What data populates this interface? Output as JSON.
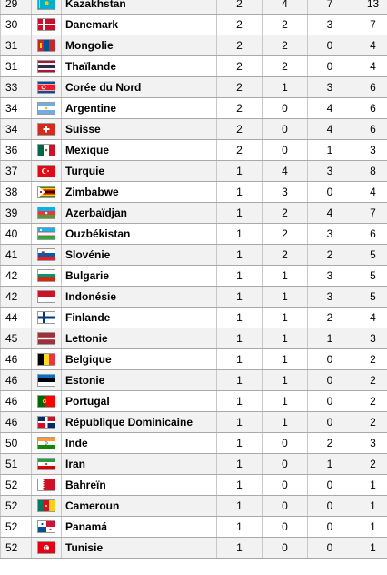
{
  "rows": [
    {
      "rank": "29",
      "country": "Kazakhstan",
      "gold": "2",
      "silver": "4",
      "bronze": "7",
      "total": "13",
      "flag": "kazakhstan-flag"
    },
    {
      "rank": "30",
      "country": "Danemark",
      "gold": "2",
      "silver": "2",
      "bronze": "3",
      "total": "7",
      "flag": "denmark-flag"
    },
    {
      "rank": "31",
      "country": "Mongolie",
      "gold": "2",
      "silver": "2",
      "bronze": "0",
      "total": "4",
      "flag": "mongolia-flag"
    },
    {
      "rank": "31",
      "country": "Thaïlande",
      "gold": "2",
      "silver": "2",
      "bronze": "0",
      "total": "4",
      "flag": "thailand-flag"
    },
    {
      "rank": "33",
      "country": "Corée du Nord",
      "gold": "2",
      "silver": "1",
      "bronze": "3",
      "total": "6",
      "flag": "north-korea-flag"
    },
    {
      "rank": "34",
      "country": "Argentine",
      "gold": "2",
      "silver": "0",
      "bronze": "4",
      "total": "6",
      "flag": "argentina-flag"
    },
    {
      "rank": "34",
      "country": "Suisse",
      "gold": "2",
      "silver": "0",
      "bronze": "4",
      "total": "6",
      "flag": "switzerland-flag"
    },
    {
      "rank": "36",
      "country": "Mexique",
      "gold": "2",
      "silver": "0",
      "bronze": "1",
      "total": "3",
      "flag": "mexico-flag"
    },
    {
      "rank": "37",
      "country": "Turquie",
      "gold": "1",
      "silver": "4",
      "bronze": "3",
      "total": "8",
      "flag": "turkey-flag"
    },
    {
      "rank": "38",
      "country": "Zimbabwe",
      "gold": "1",
      "silver": "3",
      "bronze": "0",
      "total": "4",
      "flag": "zimbabwe-flag"
    },
    {
      "rank": "39",
      "country": "Azerbaïdjan",
      "gold": "1",
      "silver": "2",
      "bronze": "4",
      "total": "7",
      "flag": "azerbaijan-flag"
    },
    {
      "rank": "40",
      "country": "Ouzbékistan",
      "gold": "1",
      "silver": "2",
      "bronze": "3",
      "total": "6",
      "flag": "uzbekistan-flag"
    },
    {
      "rank": "41",
      "country": "Slovénie",
      "gold": "1",
      "silver": "2",
      "bronze": "2",
      "total": "5",
      "flag": "slovenia-flag"
    },
    {
      "rank": "42",
      "country": "Bulgarie",
      "gold": "1",
      "silver": "1",
      "bronze": "3",
      "total": "5",
      "flag": "bulgaria-flag"
    },
    {
      "rank": "42",
      "country": "Indonésie",
      "gold": "1",
      "silver": "1",
      "bronze": "3",
      "total": "5",
      "flag": "indonesia-flag"
    },
    {
      "rank": "44",
      "country": "Finlande",
      "gold": "1",
      "silver": "1",
      "bronze": "2",
      "total": "4",
      "flag": "finland-flag"
    },
    {
      "rank": "45",
      "country": "Lettonie",
      "gold": "1",
      "silver": "1",
      "bronze": "1",
      "total": "3",
      "flag": "latvia-flag"
    },
    {
      "rank": "46",
      "country": "Belgique",
      "gold": "1",
      "silver": "1",
      "bronze": "0",
      "total": "2",
      "flag": "belgium-flag"
    },
    {
      "rank": "46",
      "country": "Estonie",
      "gold": "1",
      "silver": "1",
      "bronze": "0",
      "total": "2",
      "flag": "estonia-flag"
    },
    {
      "rank": "46",
      "country": "Portugal",
      "gold": "1",
      "silver": "1",
      "bronze": "0",
      "total": "2",
      "flag": "portugal-flag"
    },
    {
      "rank": "46",
      "country": "République Dominicaine",
      "gold": "1",
      "silver": "1",
      "bronze": "0",
      "total": "2",
      "flag": "dominican-republic-flag"
    },
    {
      "rank": "50",
      "country": "Inde",
      "gold": "1",
      "silver": "0",
      "bronze": "2",
      "total": "3",
      "flag": "india-flag"
    },
    {
      "rank": "51",
      "country": "Iran",
      "gold": "1",
      "silver": "0",
      "bronze": "1",
      "total": "2",
      "flag": "iran-flag"
    },
    {
      "rank": "52",
      "country": "Bahreïn",
      "gold": "1",
      "silver": "0",
      "bronze": "0",
      "total": "1",
      "flag": "bahrain-flag"
    },
    {
      "rank": "52",
      "country": "Cameroun",
      "gold": "1",
      "silver": "0",
      "bronze": "0",
      "total": "1",
      "flag": "cameroon-flag"
    },
    {
      "rank": "52",
      "country": "Panamá",
      "gold": "1",
      "silver": "0",
      "bronze": "0",
      "total": "1",
      "flag": "panama-flag"
    },
    {
      "rank": "52",
      "country": "Tunisie",
      "gold": "1",
      "silver": "0",
      "bronze": "0",
      "total": "1",
      "flag": "tunisia-flag"
    }
  ]
}
